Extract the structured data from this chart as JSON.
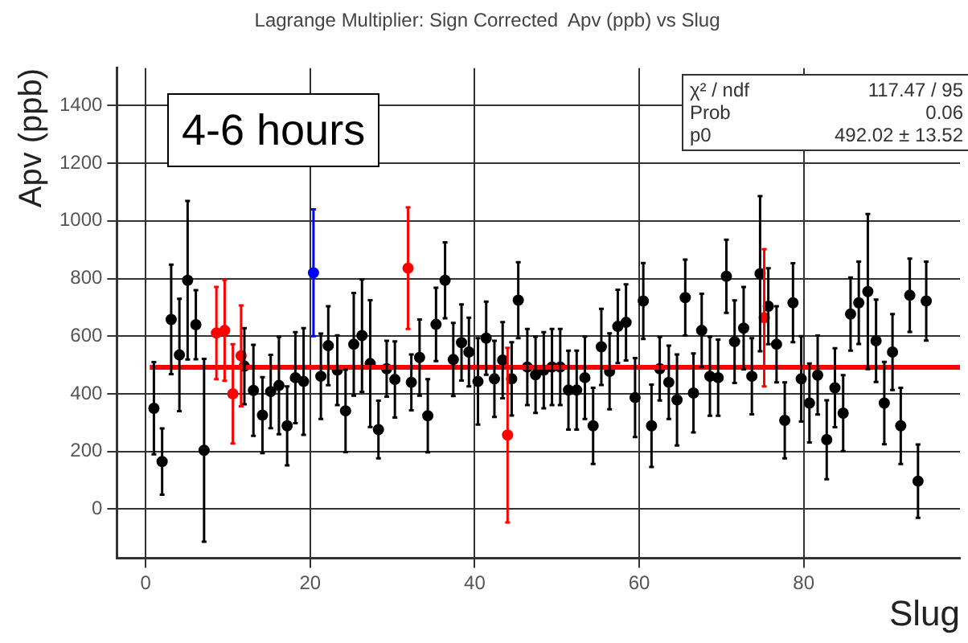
{
  "chart_data": {
    "type": "scatter",
    "title": "Lagrange Multiplier: Sign Corrected  Apv (ppb) vs Slug",
    "xlabel": "Slug",
    "ylabel": "Apv (ppb)",
    "annotations": [
      "4-6 hours",
      "χ² / ndf",
      "117.47 / 95",
      "Prob",
      "0.06",
      "p0",
      "492.02 ± 13.52"
    ],
    "xlim": [
      -3.5,
      99
    ],
    "xticks": [
      0,
      20,
      40,
      60,
      80
    ],
    "ylim": [
      -170,
      1530
    ],
    "yticks": [
      0,
      200,
      400,
      600,
      800,
      1000,
      1200,
      1400
    ],
    "grid": true,
    "marker": "circle",
    "legend": false,
    "series": [
      {
        "color": "#000000",
        "x": [
          1,
          2,
          3.1,
          4.1,
          5.1,
          6.1,
          7.1,
          12,
          13.1,
          14.2,
          15.2,
          16.2,
          17.2,
          18.2,
          19.2,
          21.3,
          22.2,
          23.3,
          24.3,
          25.3,
          26.3,
          27.3,
          28.3,
          29.3,
          30.3,
          32.3,
          33.3,
          34.3,
          35.3,
          36.4,
          37.4,
          38.4,
          39.3,
          40.4,
          41.4,
          42.4,
          43.4,
          44.5,
          45.3,
          46.4,
          47.4,
          48.4,
          49.4,
          50.4,
          51.4,
          52.4,
          53.4,
          54.4,
          55.4,
          56.4,
          57.4,
          58.4,
          59.5,
          60.5,
          61.5,
          62.5,
          63.6,
          64.6,
          65.6,
          66.6,
          67.6,
          68.6,
          69.6,
          70.6,
          71.6,
          72.7,
          73.7,
          74.7,
          75.7,
          76.7,
          77.7,
          78.7,
          79.7,
          80.7,
          81.7,
          82.8,
          83.8,
          84.8,
          85.7,
          86.7,
          87.8,
          88.8,
          89.8,
          90.8,
          91.8,
          92.9,
          93.9,
          94.9
        ],
        "values": [
          350,
          165,
          658,
          535,
          794,
          640,
          204,
          496,
          412,
          326,
          408,
          429,
          289,
          456,
          443,
          461,
          567,
          482,
          341,
          572,
          602,
          505,
          276,
          487,
          450,
          440,
          526,
          324,
          641,
          794,
          519,
          578,
          545,
          443,
          593,
          452,
          517,
          452,
          725,
          493,
          466,
          482,
          493,
          493,
          413,
          413,
          456,
          289,
          563,
          478,
          634,
          648,
          387,
          722,
          289,
          487,
          440,
          379,
          734,
          403,
          620,
          461,
          456,
          808,
          581,
          628,
          461,
          817,
          704,
          572,
          308,
          716,
          452,
          368,
          465,
          241,
          421,
          333,
          677,
          716,
          755,
          584,
          368,
          545,
          289,
          742,
          97,
          722
        ],
        "errors": [
          160,
          115,
          190,
          195,
          275,
          120,
          317,
          132,
          158,
          132,
          127,
          169,
          137,
          158,
          185,
          148,
          137,
          121,
          143,
          178,
          195,
          220,
          100,
          97,
          132,
          97,
          132,
          127,
          127,
          132,
          127,
          132,
          119,
          150,
          127,
          132,
          132,
          127,
          132,
          132,
          132,
          132,
          132,
          132,
          137,
          137,
          143,
          132,
          132,
          132,
          127,
          132,
          137,
          132,
          143,
          110,
          127,
          158,
          132,
          137,
          127,
          137,
          132,
          127,
          143,
          143,
          132,
          269,
          132,
          132,
          132,
          137,
          148,
          137,
          137,
          137,
          137,
          132,
          127,
          143,
          269,
          143,
          143,
          132,
          132,
          127,
          127,
          137
        ]
      },
      {
        "color": "#ff0000",
        "x": [
          8.6,
          9.6,
          10.6,
          11.6,
          31.9,
          44,
          75.2
        ],
        "values": [
          611,
          620,
          400,
          532,
          836,
          257,
          664
        ],
        "errors": [
          160,
          175,
          172,
          175,
          211,
          303,
          238
        ]
      },
      {
        "color": "#0000ff",
        "x": [
          20.4
        ],
        "values": [
          820
        ],
        "errors": [
          220
        ]
      },
      {
        "type": "line",
        "marker": "none",
        "color": "#ff0000",
        "x": [
          0.5,
          99
        ],
        "values": [
          492,
          492
        ]
      }
    ]
  }
}
